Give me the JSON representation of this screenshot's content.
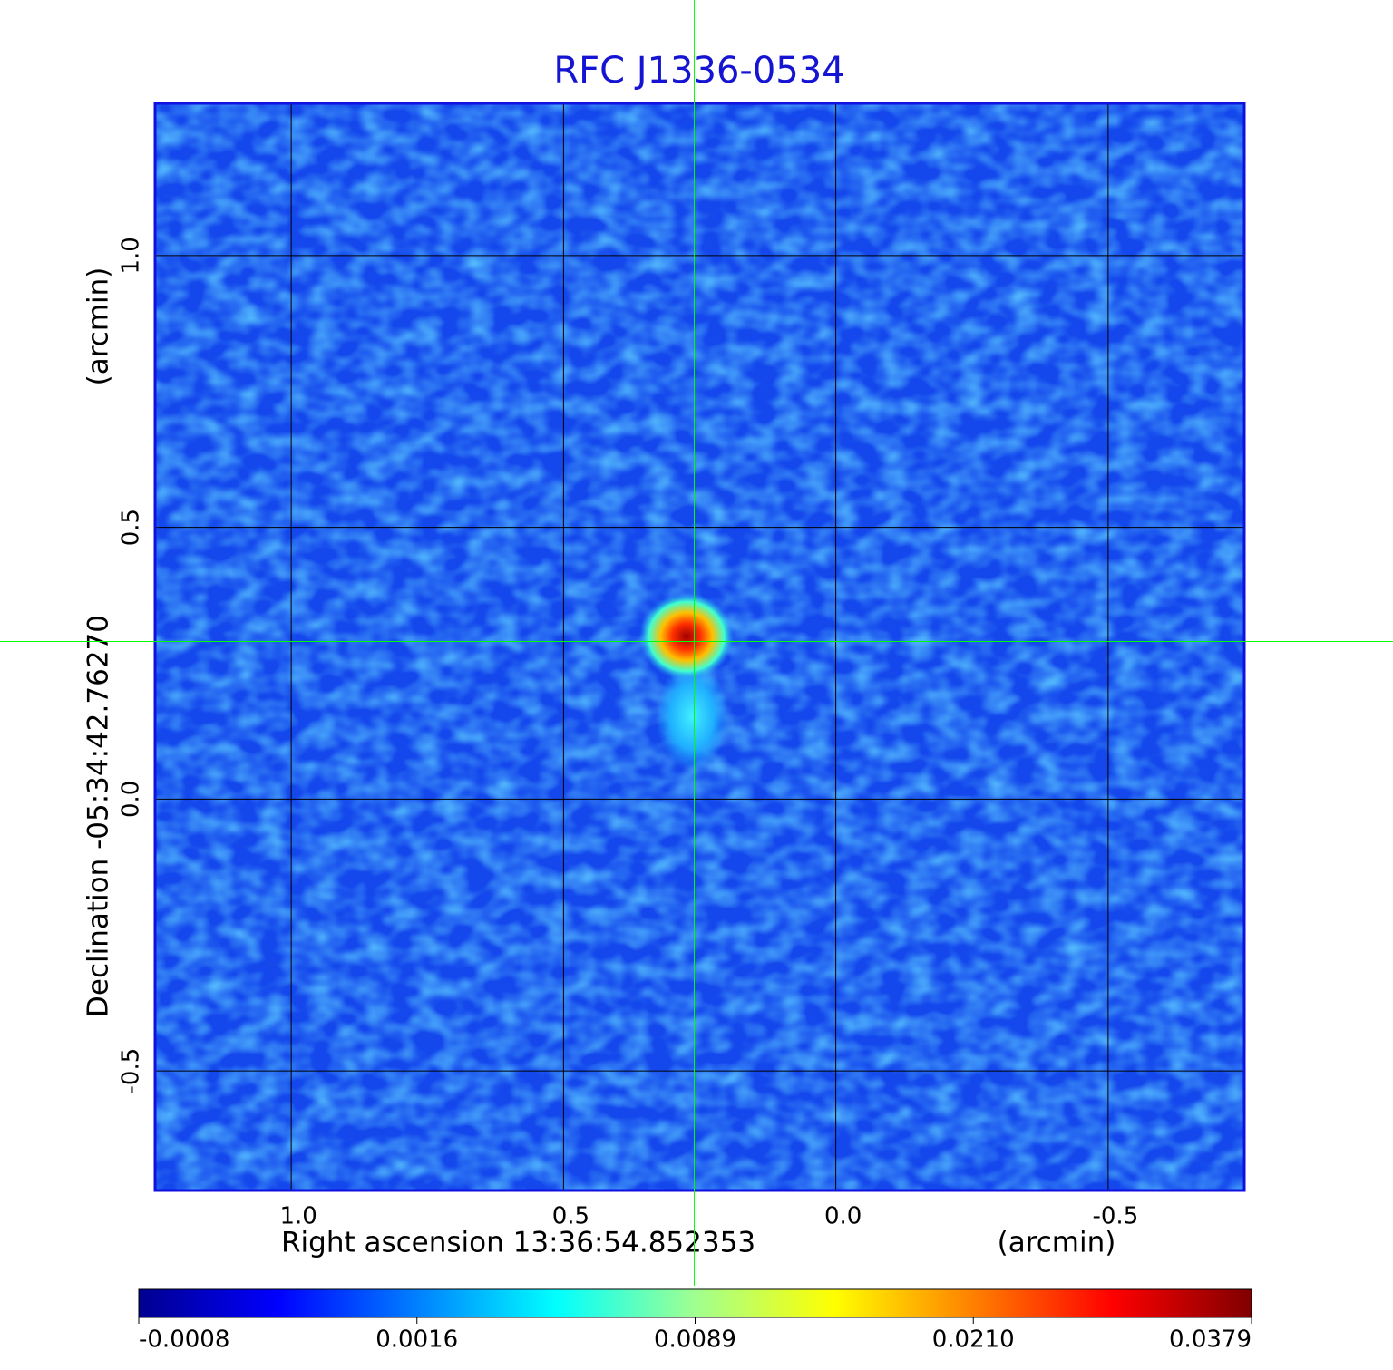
{
  "chart_data": {
    "type": "image",
    "title": "RFC J1336-0534",
    "x_label": "Right ascension  13:36:54.852353",
    "x_unit": "(arcmin)",
    "y_label": "Declination  -05:34:42.76270",
    "y_unit": "(arcmin)",
    "xlim": [
      1.25,
      -0.75
    ],
    "ylim": [
      -0.72,
      1.28
    ],
    "xticks": [
      {
        "value": 1,
        "label": "1.0"
      },
      0.5,
      {
        "value": 0,
        "label": "0.0"
      },
      -0.5
    ],
    "yticks": [
      {
        "value": 1,
        "label": "1.0"
      },
      0.5,
      {
        "value": 0,
        "label": "0.0"
      },
      -0.5
    ],
    "grid": true,
    "crosshair": {
      "x": 0.26,
      "y": 0.29,
      "color": "#00ff00"
    },
    "colorbar": {
      "ticks": [
        -0.0008,
        0.0016,
        0.0089,
        {
          "value": 0.021,
          "label": "0.0210"
        },
        0.0379
      ],
      "colormap": [
        "#00008f",
        "#0000ff",
        "#0080ff",
        "#00ffff",
        "#a0ff90",
        "#ffff00",
        "#ff8000",
        "#ff0000",
        "#800000"
      ]
    }
  }
}
